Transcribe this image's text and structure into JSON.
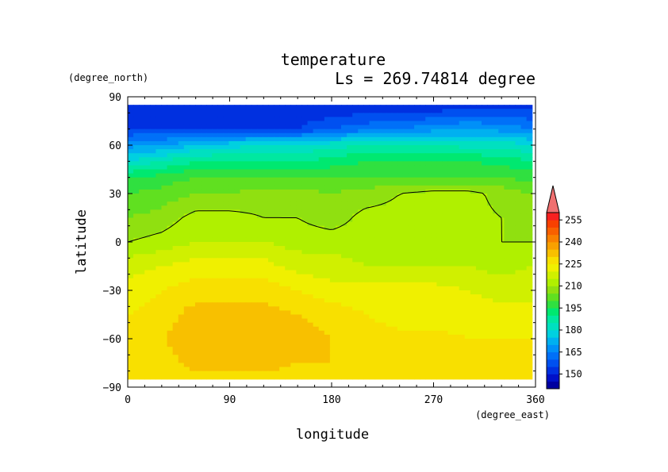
{
  "chart_data": {
    "type": "heatmap",
    "title": "temperature",
    "subtitle": "Ls = 269.74814 degree",
    "xlabel": "longitude",
    "ylabel": "latitude",
    "xunit": "(degree_east)",
    "yunit": "(degree_north)",
    "xlim": [
      0,
      360
    ],
    "ylim": [
      -90,
      90
    ],
    "xticks": [
      0,
      90,
      180,
      270,
      360
    ],
    "xtick_labels": [
      "0",
      "90",
      "180",
      "270",
      "360"
    ],
    "yticks": [
      90,
      60,
      30,
      0,
      -30,
      -60,
      -90
    ],
    "ytick_labels": [
      "90",
      "60",
      "30",
      "0",
      "−30",
      "−60",
      "−90"
    ],
    "colorbar": {
      "levels": [
        140,
        145,
        150,
        155,
        160,
        165,
        170,
        175,
        180,
        185,
        190,
        195,
        200,
        205,
        210,
        215,
        220,
        225,
        230,
        235,
        240,
        245,
        250,
        255,
        260
      ],
      "tick_values": [
        150,
        165,
        180,
        195,
        210,
        225,
        240,
        255
      ],
      "tick_labels": [
        "150",
        "165",
        "180",
        "195",
        "210",
        "225",
        "240",
        "255"
      ],
      "colors": [
        "#0000a0",
        "#0010c8",
        "#0030e0",
        "#0050f0",
        "#0070f8",
        "#0090f8",
        "#00b0f0",
        "#00d0e0",
        "#00e0c0",
        "#00e8a0",
        "#00e870",
        "#30e040",
        "#60e020",
        "#90e010",
        "#b0f000",
        "#d0f000",
        "#f0f000",
        "#f8e000",
        "#f8c000",
        "#f8a000",
        "#f88000",
        "#f86000",
        "#f84000",
        "#f82020",
        "#f07070"
      ],
      "extend": "max"
    },
    "x": [
      0,
      30,
      60,
      90,
      120,
      150,
      180,
      210,
      240,
      270,
      300,
      330,
      357
    ],
    "y": [
      85,
      70,
      60,
      50,
      40,
      30,
      15,
      0,
      -15,
      -30,
      -45,
      -60,
      -75,
      -85
    ],
    "values": [
      [
        150,
        150,
        150,
        150,
        150,
        150,
        150,
        150,
        150,
        150,
        152,
        152,
        152
      ],
      [
        155,
        155,
        155,
        155,
        155,
        155,
        160,
        163,
        165,
        168,
        170,
        168,
        165
      ],
      [
        168,
        170,
        175,
        178,
        180,
        180,
        183,
        185,
        185,
        185,
        183,
        183,
        180
      ],
      [
        180,
        185,
        190,
        190,
        190,
        190,
        192,
        195,
        195,
        195,
        195,
        193,
        190
      ],
      [
        195,
        197,
        200,
        200,
        200,
        200,
        200,
        200,
        200,
        200,
        200,
        200,
        198
      ],
      [
        200,
        202,
        205,
        205,
        207,
        207,
        205,
        207,
        210,
        212,
        212,
        208,
        205
      ],
      [
        205,
        207,
        212,
        212,
        210,
        210,
        207,
        212,
        212,
        212,
        212,
        210,
        208
      ],
      [
        210,
        212,
        215,
        215,
        215,
        213,
        213,
        213,
        213,
        213,
        212,
        210,
        210
      ],
      [
        218,
        220,
        222,
        222,
        222,
        218,
        217,
        215,
        215,
        215,
        215,
        213,
        215
      ],
      [
        222,
        225,
        228,
        228,
        228,
        225,
        222,
        222,
        222,
        222,
        220,
        218,
        218
      ],
      [
        225,
        228,
        232,
        232,
        232,
        230,
        228,
        225,
        222,
        222,
        222,
        222,
        222
      ],
      [
        225,
        230,
        232,
        232,
        232,
        232,
        230,
        228,
        227,
        227,
        225,
        225,
        225
      ],
      [
        225,
        228,
        232,
        232,
        232,
        230,
        230,
        228,
        227,
        227,
        227,
        227,
        227
      ],
      [
        225,
        227,
        228,
        228,
        228,
        228,
        227,
        227,
        227,
        227,
        227,
        227,
        227
      ]
    ],
    "contour_level": 210,
    "legend": "colorbar-right"
  }
}
